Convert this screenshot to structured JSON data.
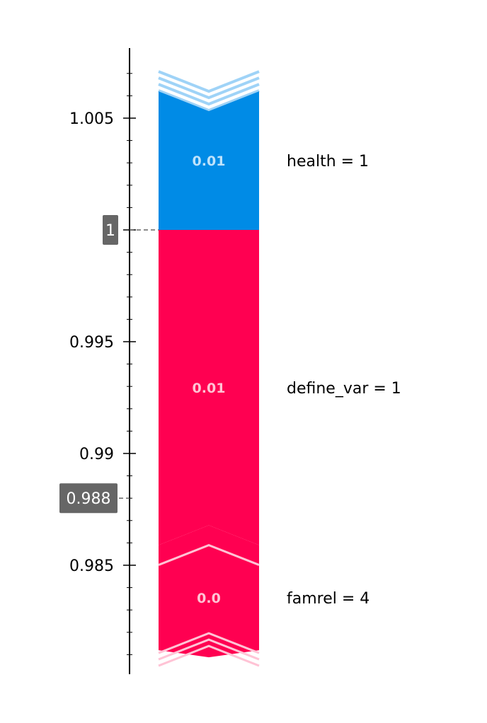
{
  "chart_data": {
    "type": "force-waterfall",
    "title": "",
    "xlabel": "",
    "ylabel": "",
    "ylim": [
      0.9804,
      1.0077
    ],
    "axis_ticks": [
      1.005,
      1,
      0.995,
      0.99,
      0.985
    ],
    "axis_tick_labels": [
      "1.005",
      "1",
      "0.995",
      "0.99",
      "0.985"
    ],
    "minor_tick_step": 0.001,
    "base_value": {
      "value": 1,
      "label": "1"
    },
    "output_value": {
      "value": 0.988,
      "label": "0.988"
    },
    "segments": [
      {
        "feature": "health = 1",
        "from": 1.0,
        "to": 1.0062,
        "value_label": "0.01",
        "effect": "positive",
        "arrow": "top"
      },
      {
        "feature": "define_var = 1",
        "from": 1.0,
        "to": 0.9859,
        "value_label": "0.01",
        "effect": "negative",
        "arrow": "bottom"
      },
      {
        "feature": "famrel = 4",
        "from": 0.9859,
        "to": 0.9812,
        "value_label": "0.0",
        "effect": "negative",
        "arrow": "bottom"
      }
    ],
    "grid": false
  },
  "colors": {
    "positive": "#008bE6",
    "negative": "#ff0051",
    "positive_stripe": "#9fd3f7",
    "negative_stripe": "#ffc3d5",
    "positive_text": "#bfe3fb",
    "negative_text": "#ffc3d5",
    "badge": "#666666",
    "axis": "#000000"
  }
}
